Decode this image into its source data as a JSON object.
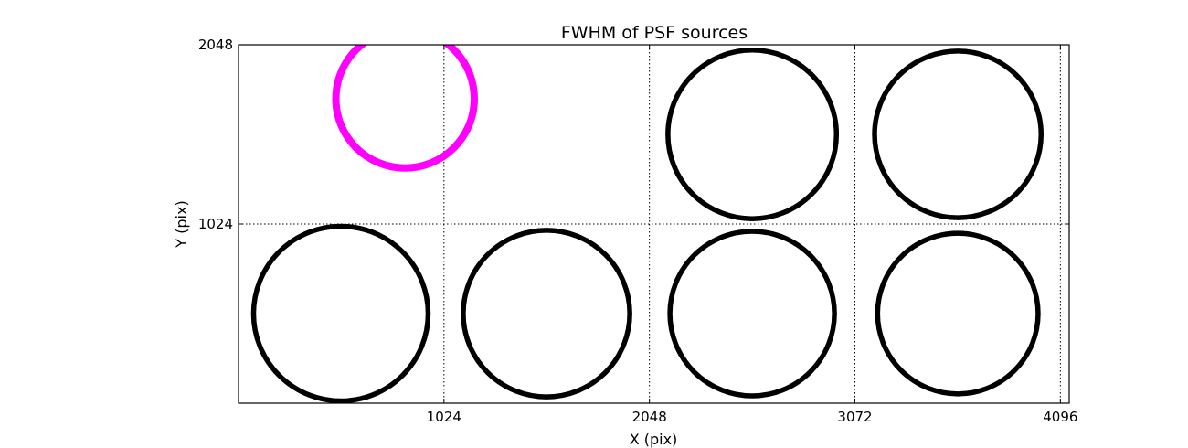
{
  "chart_data": {
    "type": "scatter",
    "title": "FWHM of PSF sources",
    "xlabel": "X (pix)",
    "ylabel": "Y (pix)",
    "xlim": [
      0,
      4140
    ],
    "ylim": [
      0,
      2048
    ],
    "x_ticks": [
      1024,
      2048,
      3072,
      4096
    ],
    "x_tick_labels": [
      "1024",
      "2048",
      "3072",
      "4096"
    ],
    "y_ticks": [
      1024,
      2048
    ],
    "y_tick_labels": [
      "1024",
      "2048"
    ],
    "grid": true,
    "marker": "circle-outline",
    "sources": [
      {
        "x": 510,
        "y": 512,
        "diameter": 870,
        "color": "#000000"
      },
      {
        "x": 1535,
        "y": 512,
        "diameter": 830,
        "color": "#000000"
      },
      {
        "x": 2560,
        "y": 512,
        "diameter": 820,
        "color": "#000000"
      },
      {
        "x": 3585,
        "y": 512,
        "diameter": 800,
        "color": "#000000"
      },
      {
        "x": 2560,
        "y": 1536,
        "diameter": 840,
        "color": "#000000"
      },
      {
        "x": 3585,
        "y": 1536,
        "diameter": 830,
        "color": "#000000"
      },
      {
        "x": 830,
        "y": 1740,
        "diameter": 690,
        "color": "#ff00ff"
      }
    ]
  }
}
